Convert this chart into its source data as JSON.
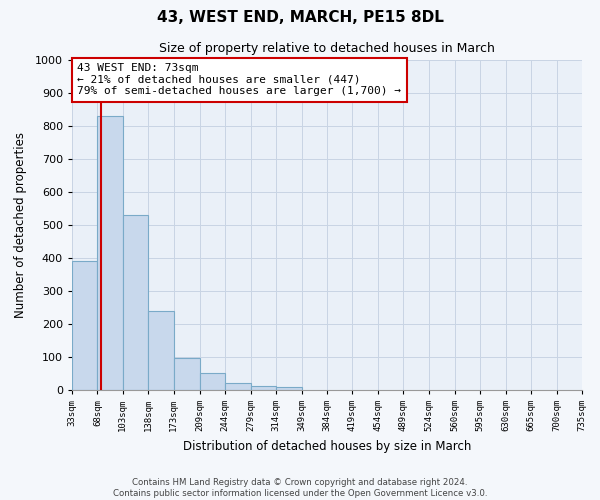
{
  "title": "43, WEST END, MARCH, PE15 8DL",
  "subtitle": "Size of property relative to detached houses in March",
  "xlabel": "Distribution of detached houses by size in March",
  "ylabel": "Number of detached properties",
  "bar_color": "#c8d8ec",
  "bar_edge_color": "#7aaac8",
  "grid_color": "#c8d4e4",
  "background_color": "#eaf0f8",
  "fig_background_color": "#f4f7fb",
  "red_line_x": 73,
  "annotation_line1": "43 WEST END: 73sqm",
  "annotation_line2": "← 21% of detached houses are smaller (447)",
  "annotation_line3": "79% of semi-detached houses are larger (1,700) →",
  "annotation_box_color": "#ffffff",
  "annotation_box_edge_color": "#cc0000",
  "footer_line1": "Contains HM Land Registry data © Crown copyright and database right 2024.",
  "footer_line2": "Contains public sector information licensed under the Open Government Licence v3.0.",
  "ylim": [
    0,
    1000
  ],
  "yticks": [
    0,
    100,
    200,
    300,
    400,
    500,
    600,
    700,
    800,
    900,
    1000
  ],
  "bin_edges": [
    33,
    68,
    103,
    138,
    173,
    209,
    244,
    279,
    314,
    349,
    384,
    419,
    454,
    489,
    524,
    560,
    595,
    630,
    665,
    700,
    735
  ],
  "bar_heights": [
    390,
    830,
    530,
    240,
    97,
    52,
    22,
    13,
    8,
    0,
    0,
    0,
    0,
    0,
    0,
    0,
    0,
    0,
    0,
    0
  ],
  "tick_labels": [
    "33sqm",
    "68sqm",
    "103sqm",
    "138sqm",
    "173sqm",
    "209sqm",
    "244sqm",
    "279sqm",
    "314sqm",
    "349sqm",
    "384sqm",
    "419sqm",
    "454sqm",
    "489sqm",
    "524sqm",
    "560sqm",
    "595sqm",
    "630sqm",
    "665sqm",
    "700sqm",
    "735sqm"
  ]
}
